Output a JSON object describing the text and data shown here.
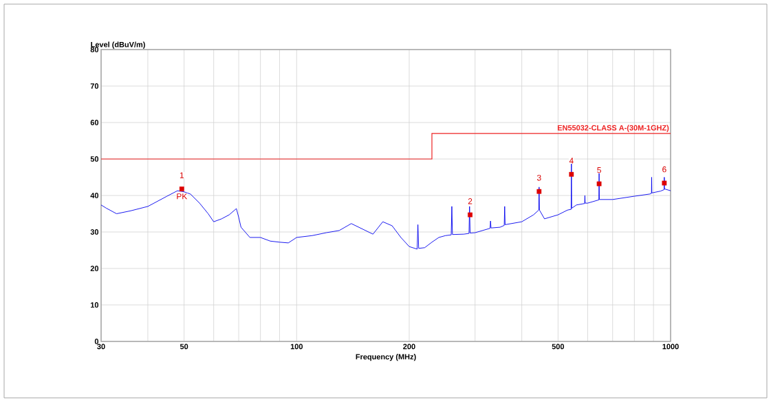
{
  "chart_data": {
    "type": "line",
    "xlabel": "Frequency (MHz)",
    "ylabel": "Level (dBuV/m)",
    "log": "x",
    "grid": true,
    "xlim": [
      30,
      1000
    ],
    "ylim": [
      0,
      80
    ],
    "xticks": [
      30,
      {
        "value": 40,
        "label": null
      },
      50,
      {
        "value": 60,
        "label": null
      },
      {
        "value": 70,
        "label": null
      },
      {
        "value": 80,
        "label": null
      },
      {
        "value": 90,
        "label": null
      },
      100,
      200,
      {
        "value": 300,
        "label": null
      },
      {
        "value": 400,
        "label": null
      },
      500,
      {
        "value": 600,
        "label": null
      },
      {
        "value": 700,
        "label": null
      },
      {
        "value": 800,
        "label": null
      },
      {
        "value": 900,
        "label": null
      },
      1000
    ],
    "yticks": [
      0,
      10,
      20,
      30,
      40,
      50,
      60,
      70,
      80
    ],
    "series": [
      {
        "type": "line",
        "color": "#0000ee",
        "marker": "none",
        "line_style": "solid",
        "x": [
          30,
          31,
          33,
          36,
          40,
          45,
          48,
          50,
          52,
          55,
          58,
          60,
          63,
          66,
          69,
          70,
          71,
          75,
          80,
          85,
          90,
          95,
          100,
          110,
          120,
          130,
          140,
          150,
          160,
          170,
          180,
          190,
          200,
          210,
          211,
          212,
          220,
          230,
          240,
          250,
          259,
          260,
          261,
          280,
          289,
          290,
          291,
          300,
          329,
          330,
          331,
          350,
          359,
          360,
          361,
          400,
          430,
          444,
          445,
          446,
          460,
          500,
          530,
          542,
          543,
          544,
          560,
          589,
          590,
          591,
          600,
          643,
          644,
          645,
          700,
          800,
          880,
          889,
          890,
          891,
          940,
          961,
          962,
          963,
          1000
        ],
        "values": [
          37.4,
          36.5,
          35,
          35.8,
          37,
          39.8,
          41.3,
          41,
          40.4,
          37.9,
          35,
          32.8,
          33.6,
          34.7,
          36.4,
          34,
          31.3,
          28.5,
          28.5,
          27.5,
          27.2,
          27,
          28.5,
          29,
          29.8,
          30.4,
          32.3,
          30.8,
          29.4,
          32.8,
          31.7,
          28.5,
          26,
          25.3,
          32,
          25.5,
          25.7,
          27.2,
          28.5,
          29,
          29.2,
          37,
          29.3,
          29.4,
          29.6,
          37,
          29.7,
          29.8,
          31,
          33,
          31.1,
          31.3,
          31.8,
          37,
          32,
          32.8,
          34.7,
          36,
          42.3,
          36,
          33.6,
          34.7,
          36,
          36.2,
          49,
          36.5,
          37.4,
          37.8,
          40,
          37.9,
          37.9,
          38.8,
          46.4,
          38.9,
          38.9,
          39.8,
          40.4,
          40.6,
          45,
          40.7,
          41.2,
          41.6,
          45,
          41.8,
          41.3
        ]
      },
      {
        "type": "step",
        "name": "EN55032-CLASS A-(30M-1GHZ)",
        "color": "#ee2222",
        "marker": "none",
        "line_style": "solid",
        "x": [
          30,
          230,
          1000
        ],
        "values": [
          50,
          57,
          57
        ]
      },
      {
        "type": "scatter",
        "color": "#dd0000",
        "marker": "square",
        "x": [
          49.3,
          291,
          445,
          543,
          644,
          962
        ],
        "values": [
          41.8,
          34.7,
          41.1,
          45.8,
          43.2,
          43.4
        ]
      }
    ],
    "annotations": [
      {
        "text": "1",
        "x": 49.3,
        "y": 41.8
      },
      {
        "text": "PK",
        "x": 49.3,
        "y": 41.8
      },
      {
        "text": "2",
        "x": 291,
        "y": 34.7
      },
      {
        "text": "3",
        "x": 445,
        "y": 41.1
      },
      {
        "text": "4",
        "x": 543,
        "y": 45.8
      },
      {
        "text": "5",
        "x": 644,
        "y": 43.2
      },
      {
        "text": "6",
        "x": 962,
        "y": 43.4
      }
    ]
  }
}
